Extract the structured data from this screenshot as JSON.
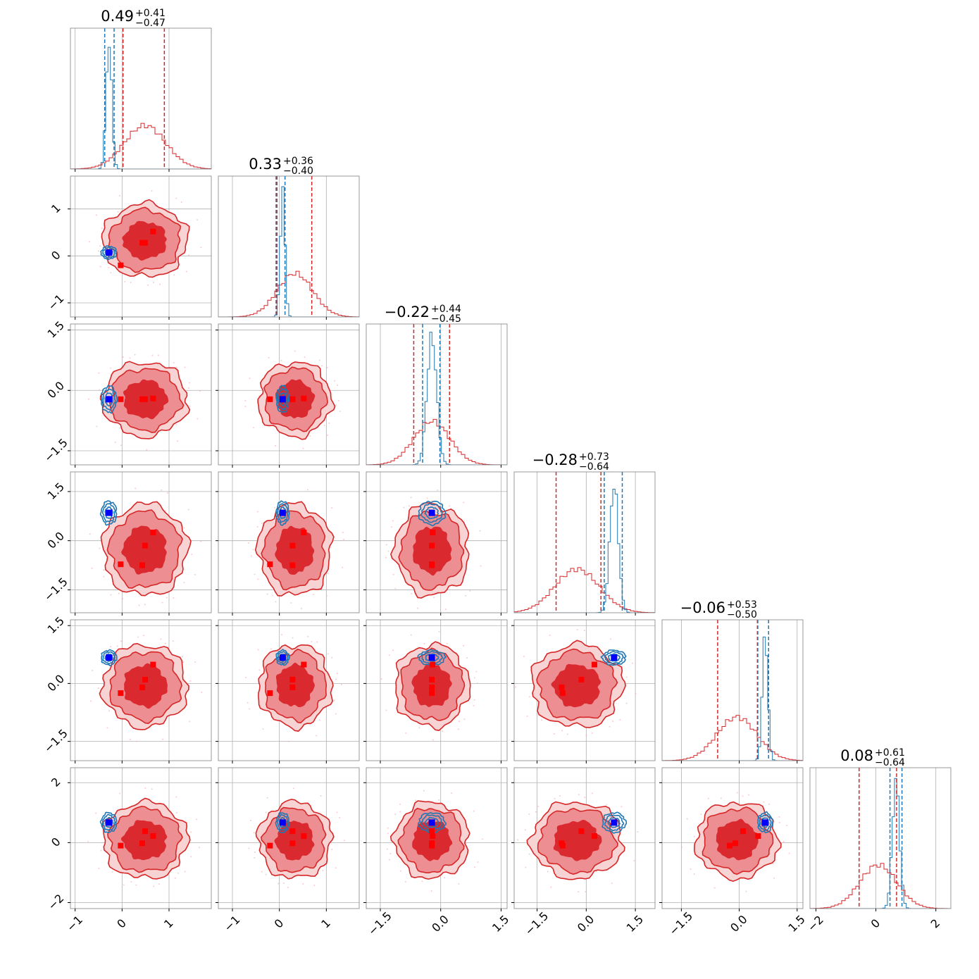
{
  "chart_data": {
    "type": "corner",
    "n_params": 6,
    "colors": {
      "prior": "#d62728",
      "posterior": "#1f77b4",
      "marker_red": "#ff0000",
      "marker_blue": "#0000ff"
    },
    "grid": true,
    "titles": [
      {
        "median": "0.49",
        "plus": "+0.41",
        "minus": "−0.47"
      },
      {
        "median": "0.33",
        "plus": "+0.36",
        "minus": "−0.40"
      },
      {
        "median": "−0.22",
        "plus": "+0.44",
        "minus": "−0.45"
      },
      {
        "median": "−0.28",
        "plus": "+0.73",
        "minus": "−0.64"
      },
      {
        "median": "−0.06",
        "plus": "+0.53",
        "minus": "−0.50"
      },
      {
        "median": "0.08",
        "plus": "+0.61",
        "minus": "−0.64"
      }
    ],
    "params": [
      {
        "range": [
          -1.1,
          1.9
        ],
        "ticks": [
          -1,
          0,
          1
        ],
        "tick_labels": [
          "−1",
          "0",
          "1"
        ],
        "red": {
          "mean": 0.49,
          "sd": 0.44
        },
        "blue": {
          "mean": -0.28,
          "sd": 0.06
        },
        "red_q": [
          0.02,
          0.9
        ],
        "blue_q": [
          -0.37,
          -0.17
        ],
        "truth": -0.28,
        "markers": [
          0.66,
          0.49,
          0.43,
          -0.03
        ]
      },
      {
        "range": [
          -1.3,
          1.7
        ],
        "ticks": [
          -1,
          0,
          1
        ],
        "tick_labels": [
          "−1",
          "0",
          "1"
        ],
        "red": {
          "mean": 0.33,
          "sd": 0.38
        },
        "blue": {
          "mean": 0.07,
          "sd": 0.05
        },
        "red_q": [
          -0.07,
          0.69
        ],
        "blue_q": [
          -0.05,
          0.12
        ],
        "truth": 0.07,
        "markers": [
          0.52,
          0.28,
          0.28,
          -0.2
        ]
      },
      {
        "range": [
          -1.85,
          1.65
        ],
        "ticks": [
          -1.5,
          0.0,
          1.5
        ],
        "tick_labels": [
          "−1.5",
          "0.0",
          "1.5"
        ],
        "red": {
          "mean": -0.22,
          "sd": 0.45
        },
        "blue": {
          "mean": -0.22,
          "sd": 0.12
        },
        "red_q": [
          -0.67,
          0.22
        ],
        "blue_q": [
          -0.45,
          -0.02
        ],
        "truth": -0.22,
        "markers": [
          -0.2,
          -0.22,
          -0.22,
          -0.22
        ]
      },
      {
        "range": [
          -2.2,
          2.1
        ],
        "ticks": [
          -1.5,
          0.0,
          1.5
        ],
        "tick_labels": [
          "−1.5",
          "0.0",
          "1.5"
        ],
        "red": {
          "mean": -0.28,
          "sd": 0.68
        },
        "blue": {
          "mean": 0.85,
          "sd": 0.13
        },
        "red_q": [
          -0.92,
          0.45
        ],
        "blue_q": [
          0.55,
          1.1
        ],
        "truth": 0.85,
        "markers": [
          0.25,
          -0.15,
          -0.75,
          -0.72
        ]
      },
      {
        "range": [
          -2.0,
          1.65
        ],
        "ticks": [
          -1.5,
          0.0,
          1.5
        ],
        "tick_labels": [
          "−1.5",
          "0.0",
          "1.5"
        ],
        "red": {
          "mean": -0.06,
          "sd": 0.52
        },
        "blue": {
          "mean": 0.67,
          "sd": 0.07
        },
        "red_q": [
          -0.56,
          0.47
        ],
        "blue_q": [
          0.48,
          0.76
        ],
        "truth": 0.67,
        "markers": [
          0.49,
          0.1,
          -0.1,
          -0.25
        ]
      },
      {
        "range": [
          -2.2,
          2.5
        ],
        "ticks": [
          -2,
          0,
          2
        ],
        "tick_labels": [
          "−2",
          "0",
          "2"
        ],
        "red": {
          "mean": 0.08,
          "sd": 0.62
        },
        "blue": {
          "mean": 0.67,
          "sd": 0.12
        },
        "red_q": [
          -0.56,
          0.69
        ],
        "blue_q": [
          0.47,
          0.87
        ],
        "truth": 0.67,
        "markers": [
          0.22,
          0.38,
          -0.02,
          -0.1
        ]
      }
    ]
  }
}
